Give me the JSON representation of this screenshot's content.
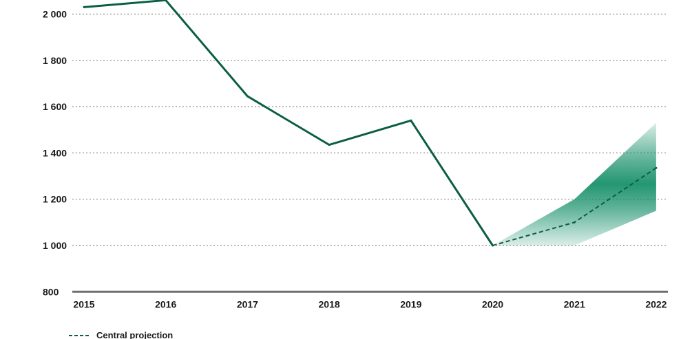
{
  "chart_data": {
    "type": "line",
    "title": "",
    "xlabel": "",
    "ylabel": "",
    "x": [
      "2015",
      "2016",
      "2017",
      "2018",
      "2019",
      "2020",
      "2021",
      "2022"
    ],
    "ylim": [
      800,
      2050
    ],
    "yticks": [
      800,
      1000,
      1200,
      1400,
      1600,
      1800,
      2000
    ],
    "ytick_labels": [
      "800",
      "1 000",
      "1 200",
      "1 400",
      "1 600",
      "1 800",
      "2 000"
    ],
    "grid": true,
    "series": [
      {
        "name": "",
        "style": "solid",
        "color": "#0b5e46",
        "x": [
          "2015",
          "2016",
          "2017",
          "2018",
          "2019",
          "2020"
        ],
        "values": [
          2030,
          2060,
          1645,
          1435,
          1540,
          1000
        ]
      },
      {
        "name": "",
        "style": "dashed",
        "color": "#0b5e46",
        "x": [
          "2020",
          "2021",
          "2022"
        ],
        "values": [
          1000,
          1100,
          1335
        ]
      }
    ],
    "uncertainty_band": {
      "color": "#0b8a62",
      "x": [
        "2020",
        "2021",
        "2022"
      ],
      "upper": [
        1000,
        1200,
        1530
      ],
      "lower": [
        1000,
        1000,
        1150
      ]
    },
    "legend": {
      "placement": "bottom-left",
      "entries": [
        "Central projection"
      ]
    }
  }
}
